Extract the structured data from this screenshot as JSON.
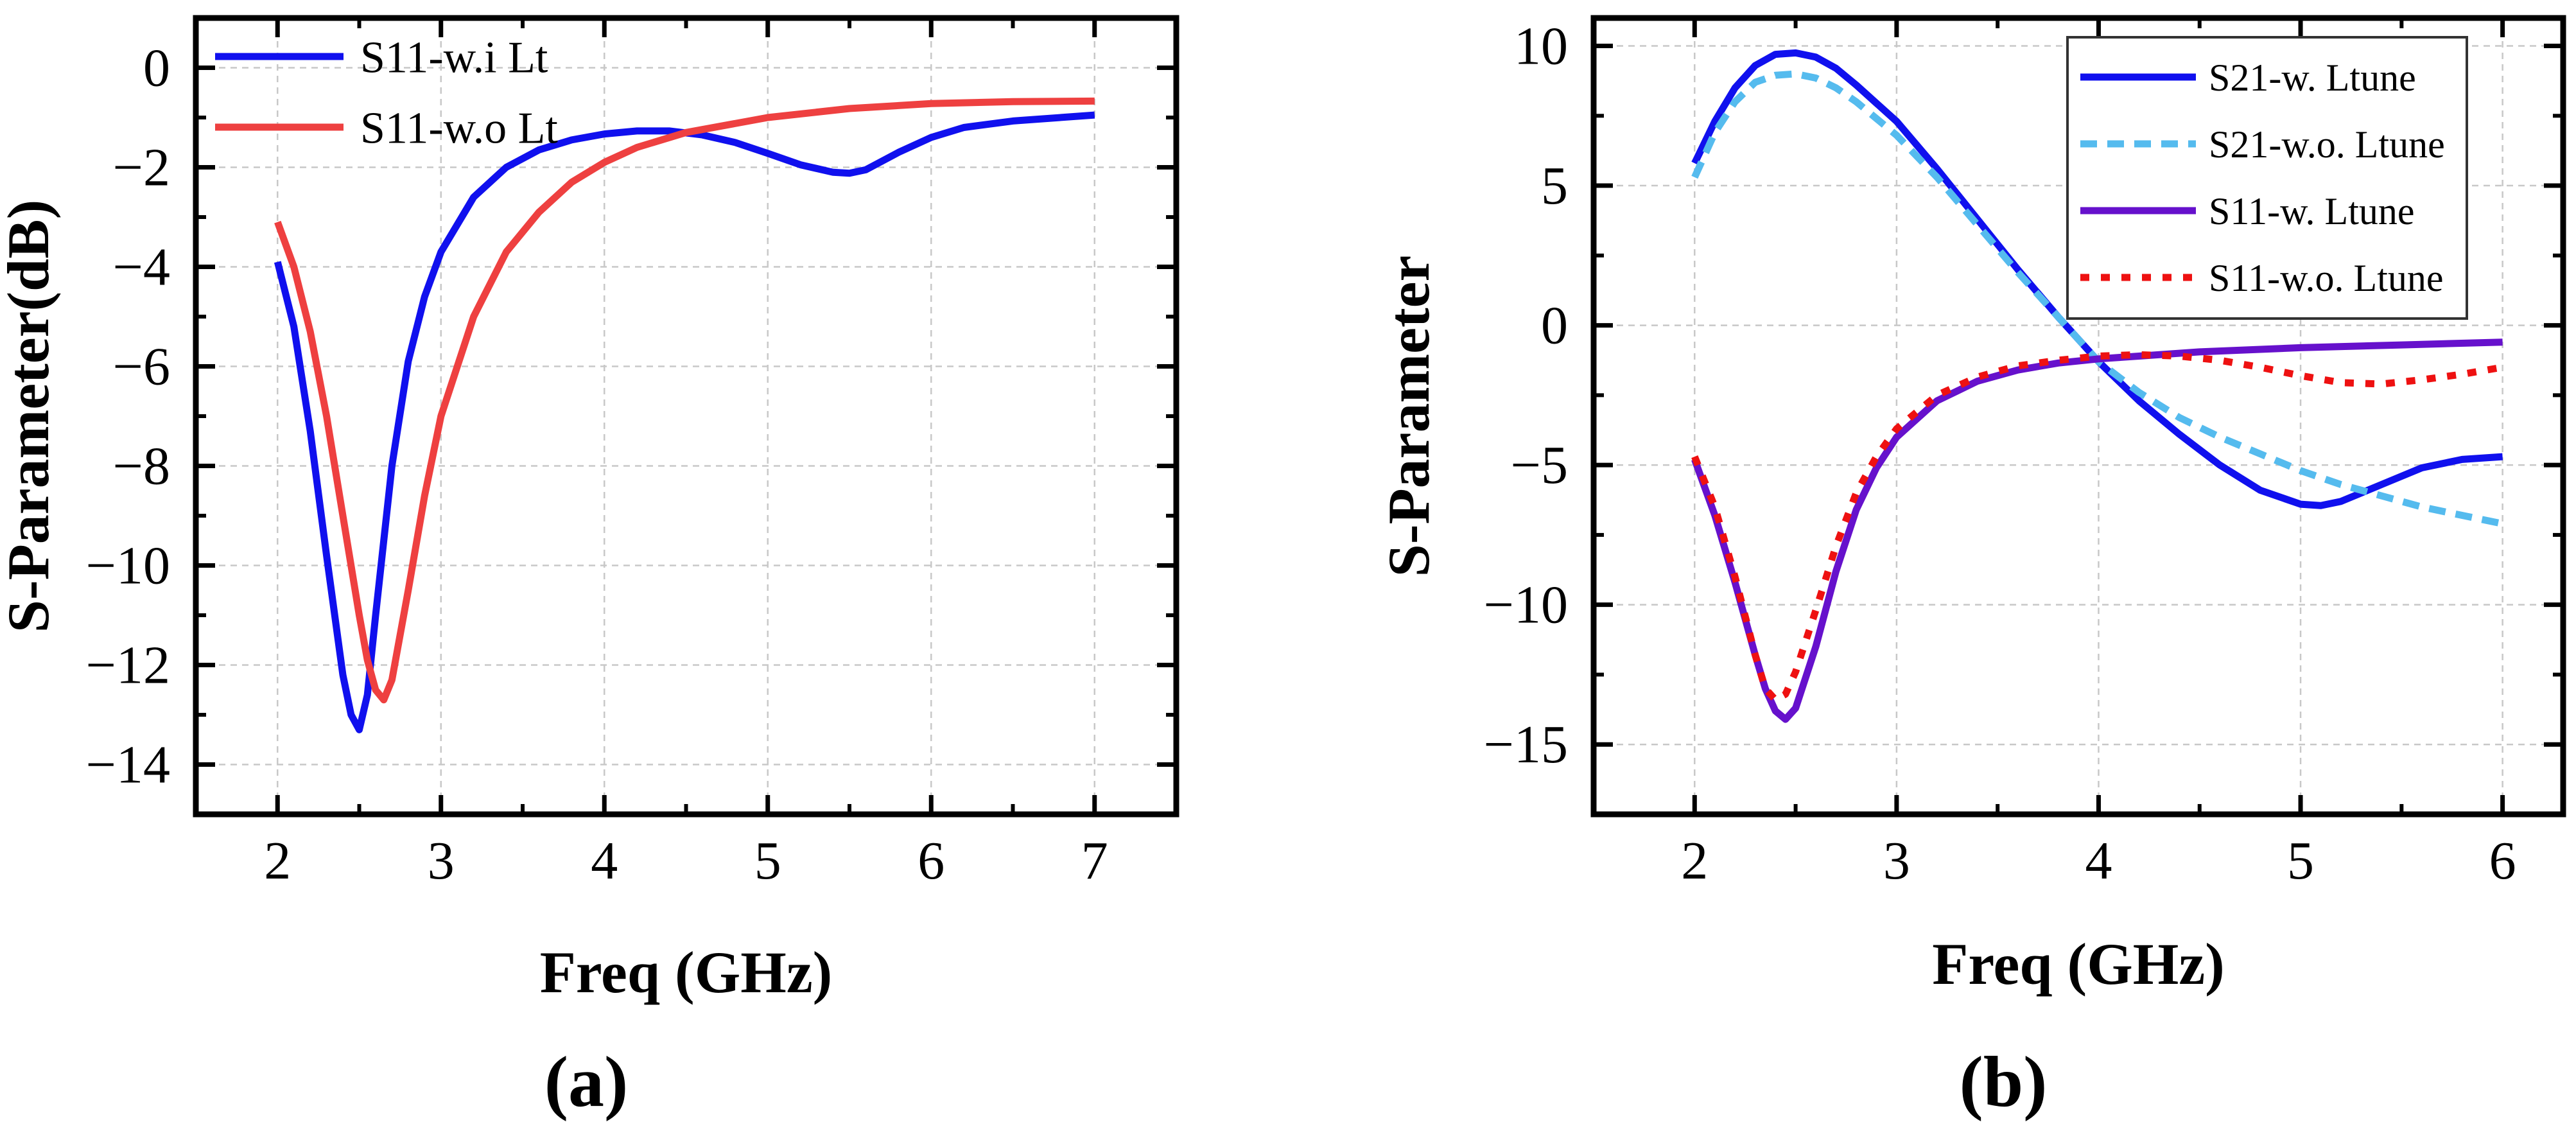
{
  "chart_data": [
    {
      "type": "line",
      "panel_label": "(a)",
      "xlabel": "Freq (GHz)",
      "ylabel": "S-Parameter(dB)",
      "xlim": [
        1.5,
        7.5
      ],
      "ylim": [
        -15,
        1
      ],
      "xticks": [
        2,
        3,
        4,
        5,
        6,
        7
      ],
      "yticks": [
        0,
        -2,
        -4,
        -6,
        -8,
        -10,
        -12,
        -14
      ],
      "xtick_labels": [
        "2",
        "3",
        "4",
        "5",
        "6",
        "7"
      ],
      "ytick_labels": [
        "0",
        "−2",
        "−4",
        "−6",
        "−8",
        "−10",
        "−12",
        "−14"
      ],
      "grid": true,
      "legend_position": "top-left",
      "series": [
        {
          "name": "S11-w.i Lt",
          "color": "#1010ee",
          "style": "solid",
          "x": [
            2.0,
            2.1,
            2.2,
            2.3,
            2.4,
            2.45,
            2.5,
            2.55,
            2.6,
            2.7,
            2.8,
            2.9,
            3.0,
            3.2,
            3.4,
            3.6,
            3.8,
            4.0,
            4.2,
            4.4,
            4.6,
            4.8,
            5.0,
            5.2,
            5.4,
            5.5,
            5.6,
            5.8,
            6.0,
            6.2,
            6.5,
            7.0
          ],
          "y": [
            -3.9,
            -5.2,
            -7.3,
            -9.8,
            -12.2,
            -13.0,
            -13.3,
            -12.6,
            -11.0,
            -8.0,
            -5.9,
            -4.6,
            -3.7,
            -2.6,
            -2.0,
            -1.65,
            -1.45,
            -1.33,
            -1.27,
            -1.27,
            -1.35,
            -1.5,
            -1.72,
            -1.95,
            -2.1,
            -2.12,
            -2.05,
            -1.7,
            -1.4,
            -1.2,
            -1.07,
            -0.95
          ]
        },
        {
          "name": "S11-w.o Lt",
          "color": "#ee4040",
          "style": "solid",
          "x": [
            2.0,
            2.1,
            2.2,
            2.3,
            2.4,
            2.5,
            2.55,
            2.6,
            2.65,
            2.7,
            2.8,
            2.9,
            3.0,
            3.2,
            3.4,
            3.6,
            3.8,
            4.0,
            4.2,
            4.5,
            5.0,
            5.5,
            6.0,
            6.5,
            7.0
          ],
          "y": [
            -3.1,
            -4.0,
            -5.3,
            -7.0,
            -9.0,
            -11.0,
            -11.9,
            -12.5,
            -12.7,
            -12.3,
            -10.5,
            -8.6,
            -7.0,
            -5.0,
            -3.7,
            -2.9,
            -2.3,
            -1.9,
            -1.6,
            -1.3,
            -1.0,
            -0.82,
            -0.72,
            -0.68,
            -0.67
          ]
        }
      ]
    },
    {
      "type": "line",
      "panel_label": "(b)",
      "xlabel": "Freq (GHz)",
      "ylabel": "S-Parameter",
      "xlim": [
        1.5,
        6.3
      ],
      "ylim": [
        -17.5,
        11
      ],
      "xticks": [
        2,
        3,
        4,
        5,
        6
      ],
      "yticks": [
        10,
        5,
        0,
        -5,
        -10,
        -15
      ],
      "xtick_labels": [
        "2",
        "3",
        "4",
        "5",
        "6"
      ],
      "ytick_labels": [
        "10",
        "5",
        "0",
        "−5",
        "−10",
        "−15"
      ],
      "grid": true,
      "legend_position": "top-right",
      "series": [
        {
          "name": "S21-w. Ltune",
          "color": "#1010ee",
          "style": "solid",
          "x": [
            2.0,
            2.1,
            2.2,
            2.3,
            2.4,
            2.5,
            2.6,
            2.7,
            2.8,
            3.0,
            3.2,
            3.4,
            3.6,
            3.8,
            4.0,
            4.2,
            4.4,
            4.6,
            4.8,
            5.0,
            5.1,
            5.2,
            5.4,
            5.6,
            5.8,
            6.0
          ],
          "y": [
            5.8,
            7.3,
            8.5,
            9.3,
            9.7,
            9.75,
            9.6,
            9.2,
            8.6,
            7.3,
            5.6,
            3.8,
            2.0,
            0.3,
            -1.3,
            -2.7,
            -3.9,
            -5.0,
            -5.9,
            -6.4,
            -6.45,
            -6.3,
            -5.7,
            -5.1,
            -4.8,
            -4.7
          ]
        },
        {
          "name": "S21-w.o. Ltune",
          "color": "#55bbee",
          "style": "dashed",
          "x": [
            2.0,
            2.1,
            2.2,
            2.3,
            2.4,
            2.5,
            2.6,
            2.7,
            2.8,
            3.0,
            3.2,
            3.4,
            3.6,
            3.8,
            4.0,
            4.2,
            4.4,
            4.6,
            4.8,
            5.0,
            5.2,
            5.4,
            5.6,
            5.8,
            6.0
          ],
          "y": [
            5.3,
            6.9,
            8.0,
            8.7,
            8.95,
            9.0,
            8.85,
            8.5,
            8.0,
            6.8,
            5.3,
            3.6,
            1.9,
            0.3,
            -1.3,
            -2.4,
            -3.3,
            -4.0,
            -4.6,
            -5.2,
            -5.7,
            -6.1,
            -6.5,
            -6.8,
            -7.1
          ]
        },
        {
          "name": "S11-w. Ltune",
          "color": "#6611cc",
          "style": "solid",
          "x": [
            2.0,
            2.1,
            2.2,
            2.3,
            2.35,
            2.4,
            2.45,
            2.5,
            2.6,
            2.7,
            2.8,
            2.9,
            3.0,
            3.2,
            3.4,
            3.6,
            3.8,
            4.0,
            4.2,
            4.5,
            5.0,
            5.5,
            6.0
          ],
          "y": [
            -4.8,
            -6.8,
            -9.2,
            -11.8,
            -13.0,
            -13.8,
            -14.1,
            -13.7,
            -11.5,
            -8.8,
            -6.6,
            -5.1,
            -4.0,
            -2.7,
            -2.0,
            -1.6,
            -1.35,
            -1.2,
            -1.1,
            -0.95,
            -0.8,
            -0.7,
            -0.6
          ]
        },
        {
          "name": "S11-w.o. Ltune",
          "color": "#ee1111",
          "style": "dotted",
          "x": [
            2.0,
            2.1,
            2.2,
            2.3,
            2.35,
            2.4,
            2.45,
            2.5,
            2.6,
            2.7,
            2.8,
            2.9,
            3.0,
            3.2,
            3.4,
            3.6,
            3.8,
            4.0,
            4.2,
            4.4,
            4.6,
            4.8,
            5.0,
            5.2,
            5.4,
            5.6,
            5.8,
            6.0
          ],
          "y": [
            -4.7,
            -6.5,
            -9.0,
            -11.8,
            -13.0,
            -13.4,
            -13.2,
            -12.4,
            -10.2,
            -7.9,
            -6.0,
            -4.7,
            -3.7,
            -2.5,
            -1.85,
            -1.45,
            -1.25,
            -1.1,
            -1.05,
            -1.1,
            -1.25,
            -1.5,
            -1.8,
            -2.05,
            -2.1,
            -1.95,
            -1.75,
            -1.5
          ]
        }
      ]
    }
  ]
}
